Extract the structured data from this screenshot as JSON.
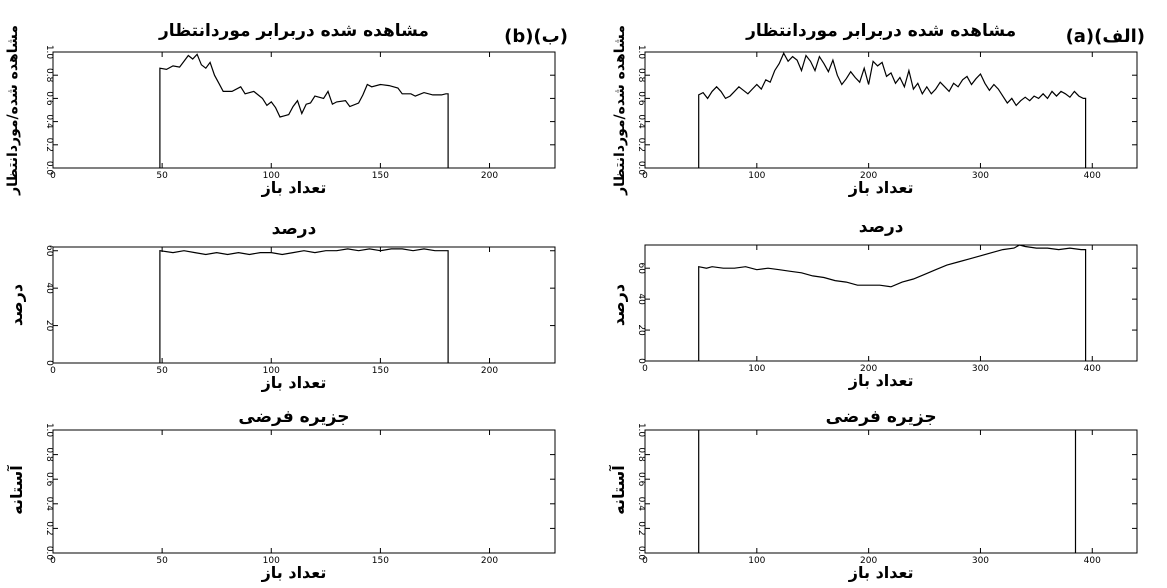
{
  "chart_data": [
    {
      "id": "a_top",
      "type": "line",
      "panel_label": "(a)(الف)",
      "title": "مشاهده شده دربرابر موردانتظار",
      "xlabel": "تعداد باز",
      "ylabel": "مشاهده شده/موردانتظار",
      "xlim": [
        0,
        440
      ],
      "ylim": [
        0,
        1.0
      ],
      "xticks": [
        "0",
        "100",
        "200",
        "300",
        "400"
      ],
      "yticks": [
        "0.0",
        "0.2",
        "0.4",
        "0.6",
        "0.8",
        "1.0"
      ],
      "points": [
        [
          48,
          0
        ],
        [
          48,
          0.63
        ],
        [
          52,
          0.65
        ],
        [
          56,
          0.6
        ],
        [
          60,
          0.66
        ],
        [
          64,
          0.7
        ],
        [
          68,
          0.66
        ],
        [
          72,
          0.6
        ],
        [
          76,
          0.62
        ],
        [
          80,
          0.66
        ],
        [
          84,
          0.7
        ],
        [
          88,
          0.67
        ],
        [
          92,
          0.64
        ],
        [
          96,
          0.68
        ],
        [
          100,
          0.72
        ],
        [
          104,
          0.68
        ],
        [
          108,
          0.76
        ],
        [
          112,
          0.74
        ],
        [
          116,
          0.84
        ],
        [
          120,
          0.9
        ],
        [
          124,
          0.99
        ],
        [
          128,
          0.92
        ],
        [
          132,
          0.96
        ],
        [
          136,
          0.93
        ],
        [
          140,
          0.84
        ],
        [
          144,
          0.97
        ],
        [
          148,
          0.92
        ],
        [
          152,
          0.84
        ],
        [
          156,
          0.96
        ],
        [
          160,
          0.9
        ],
        [
          164,
          0.83
        ],
        [
          168,
          0.93
        ],
        [
          172,
          0.8
        ],
        [
          176,
          0.72
        ],
        [
          180,
          0.77
        ],
        [
          184,
          0.83
        ],
        [
          188,
          0.78
        ],
        [
          192,
          0.74
        ],
        [
          196,
          0.86
        ],
        [
          200,
          0.72
        ],
        [
          204,
          0.92
        ],
        [
          208,
          0.88
        ],
        [
          212,
          0.91
        ],
        [
          216,
          0.79
        ],
        [
          220,
          0.82
        ],
        [
          224,
          0.73
        ],
        [
          228,
          0.78
        ],
        [
          232,
          0.7
        ],
        [
          236,
          0.84
        ],
        [
          240,
          0.68
        ],
        [
          244,
          0.73
        ],
        [
          248,
          0.64
        ],
        [
          252,
          0.7
        ],
        [
          256,
          0.64
        ],
        [
          260,
          0.68
        ],
        [
          264,
          0.74
        ],
        [
          268,
          0.7
        ],
        [
          272,
          0.66
        ],
        [
          276,
          0.73
        ],
        [
          280,
          0.7
        ],
        [
          284,
          0.76
        ],
        [
          288,
          0.79
        ],
        [
          292,
          0.72
        ],
        [
          296,
          0.77
        ],
        [
          300,
          0.81
        ],
        [
          304,
          0.73
        ],
        [
          308,
          0.67
        ],
        [
          312,
          0.72
        ],
        [
          316,
          0.68
        ],
        [
          320,
          0.62
        ],
        [
          324,
          0.56
        ],
        [
          328,
          0.6
        ],
        [
          332,
          0.54
        ],
        [
          336,
          0.58
        ],
        [
          340,
          0.61
        ],
        [
          344,
          0.58
        ],
        [
          348,
          0.62
        ],
        [
          352,
          0.6
        ],
        [
          356,
          0.64
        ],
        [
          360,
          0.6
        ],
        [
          364,
          0.66
        ],
        [
          368,
          0.62
        ],
        [
          372,
          0.66
        ],
        [
          376,
          0.64
        ],
        [
          380,
          0.61
        ],
        [
          384,
          0.66
        ],
        [
          388,
          0.62
        ],
        [
          392,
          0.6
        ],
        [
          394,
          0.6
        ],
        [
          394,
          0
        ]
      ]
    },
    {
      "id": "a_mid",
      "type": "line",
      "title": "درصد",
      "xlabel": "تعداد باز",
      "ylabel": "درصد",
      "xlim": [
        0,
        440
      ],
      "ylim": [
        0,
        75
      ],
      "xticks": [
        "0",
        "100",
        "200",
        "300",
        "400"
      ],
      "yticks": [
        "0",
        "20",
        "40",
        "60"
      ],
      "points": [
        [
          48,
          0
        ],
        [
          48,
          61
        ],
        [
          55,
          60
        ],
        [
          60,
          61
        ],
        [
          70,
          60
        ],
        [
          80,
          60
        ],
        [
          90,
          61
        ],
        [
          100,
          59
        ],
        [
          110,
          60
        ],
        [
          120,
          59
        ],
        [
          130,
          58
        ],
        [
          140,
          57
        ],
        [
          150,
          55
        ],
        [
          160,
          54
        ],
        [
          170,
          52
        ],
        [
          180,
          51
        ],
        [
          190,
          49
        ],
        [
          200,
          49
        ],
        [
          210,
          49
        ],
        [
          220,
          48
        ],
        [
          230,
          51
        ],
        [
          240,
          53
        ],
        [
          250,
          56
        ],
        [
          260,
          59
        ],
        [
          270,
          62
        ],
        [
          280,
          64
        ],
        [
          290,
          66
        ],
        [
          300,
          68
        ],
        [
          310,
          70
        ],
        [
          320,
          72
        ],
        [
          330,
          73
        ],
        [
          335,
          75
        ],
        [
          340,
          74
        ],
        [
          350,
          73
        ],
        [
          360,
          73
        ],
        [
          370,
          72
        ],
        [
          380,
          73
        ],
        [
          390,
          72
        ],
        [
          394,
          72
        ],
        [
          394,
          0
        ]
      ]
    },
    {
      "id": "a_bot",
      "type": "line",
      "title": "جزیره فرضی",
      "xlabel": "تعداد باز",
      "ylabel": "آستانه",
      "xlim": [
        0,
        440
      ],
      "ylim": [
        0,
        1.0
      ],
      "xticks": [
        "0",
        "100",
        "200",
        "300",
        "400"
      ],
      "yticks": [
        "0.0",
        "0.2",
        "0.4",
        "0.6",
        "0.8",
        "1.0"
      ],
      "points": [
        [
          48,
          0
        ],
        [
          48,
          1.0
        ]
      ],
      "points2": [
        [
          385,
          0
        ],
        [
          385,
          1.0
        ]
      ]
    },
    {
      "id": "b_top",
      "type": "line",
      "panel_label": "(b)(ب)",
      "title": "مشاهده شده دربرابر موردانتظار",
      "xlabel": "تعداد باز",
      "ylabel": "مشاهده شده/موردانتظار",
      "xlim": [
        0,
        230
      ],
      "ylim": [
        0,
        1.0
      ],
      "xticks": [
        "0",
        "50",
        "100",
        "150",
        "200"
      ],
      "yticks": [
        "0.0",
        "0.2",
        "0.4",
        "0.6",
        "0.8",
        "1.0"
      ],
      "points": [
        [
          49,
          0
        ],
        [
          49,
          0.86
        ],
        [
          52,
          0.85
        ],
        [
          55,
          0.88
        ],
        [
          58,
          0.87
        ],
        [
          60,
          0.92
        ],
        [
          62,
          0.97
        ],
        [
          64,
          0.94
        ],
        [
          66,
          0.98
        ],
        [
          68,
          0.89
        ],
        [
          70,
          0.86
        ],
        [
          72,
          0.91
        ],
        [
          74,
          0.8
        ],
        [
          76,
          0.73
        ],
        [
          78,
          0.66
        ],
        [
          82,
          0.66
        ],
        [
          86,
          0.7
        ],
        [
          88,
          0.64
        ],
        [
          92,
          0.66
        ],
        [
          96,
          0.6
        ],
        [
          98,
          0.54
        ],
        [
          100,
          0.57
        ],
        [
          102,
          0.52
        ],
        [
          104,
          0.44
        ],
        [
          106,
          0.45
        ],
        [
          108,
          0.46
        ],
        [
          110,
          0.53
        ],
        [
          112,
          0.58
        ],
        [
          114,
          0.47
        ],
        [
          116,
          0.55
        ],
        [
          118,
          0.56
        ],
        [
          120,
          0.62
        ],
        [
          124,
          0.6
        ],
        [
          126,
          0.66
        ],
        [
          128,
          0.55
        ],
        [
          130,
          0.57
        ],
        [
          134,
          0.58
        ],
        [
          136,
          0.53
        ],
        [
          140,
          0.56
        ],
        [
          142,
          0.63
        ],
        [
          144,
          0.72
        ],
        [
          146,
          0.7
        ],
        [
          150,
          0.72
        ],
        [
          154,
          0.71
        ],
        [
          158,
          0.69
        ],
        [
          160,
          0.64
        ],
        [
          164,
          0.64
        ],
        [
          166,
          0.62
        ],
        [
          170,
          0.65
        ],
        [
          174,
          0.63
        ],
        [
          178,
          0.63
        ],
        [
          180,
          0.64
        ],
        [
          181,
          0.64
        ],
        [
          181,
          0
        ]
      ]
    },
    {
      "id": "b_mid",
      "type": "line",
      "title": "درصد",
      "xlabel": "تعداد باز",
      "ylabel": "درصد",
      "xlim": [
        0,
        230
      ],
      "ylim": [
        0,
        62
      ],
      "xticks": [
        "0",
        "50",
        "100",
        "150",
        "200"
      ],
      "yticks": [
        "0",
        "20",
        "40",
        "60"
      ],
      "points": [
        [
          49,
          0
        ],
        [
          49,
          60
        ],
        [
          55,
          59
        ],
        [
          60,
          60
        ],
        [
          65,
          59
        ],
        [
          70,
          58
        ],
        [
          75,
          59
        ],
        [
          80,
          58
        ],
        [
          85,
          59
        ],
        [
          90,
          58
        ],
        [
          95,
          59
        ],
        [
          100,
          59
        ],
        [
          105,
          58
        ],
        [
          110,
          59
        ],
        [
          115,
          60
        ],
        [
          120,
          59
        ],
        [
          125,
          60
        ],
        [
          130,
          60
        ],
        [
          135,
          61
        ],
        [
          140,
          60
        ],
        [
          145,
          61
        ],
        [
          150,
          60
        ],
        [
          155,
          61
        ],
        [
          160,
          61
        ],
        [
          165,
          60
        ],
        [
          170,
          61
        ],
        [
          175,
          60
        ],
        [
          180,
          60
        ],
        [
          181,
          60
        ],
        [
          181,
          0
        ]
      ]
    },
    {
      "id": "b_bot",
      "type": "line",
      "title": "جزیره فرضی",
      "xlabel": "تعداد باز",
      "ylabel": "آستانه",
      "xlim": [
        0,
        230
      ],
      "ylim": [
        0,
        1.0
      ],
      "xticks": [
        "0",
        "50",
        "100",
        "150",
        "200"
      ],
      "yticks": [
        "0.0",
        "0.2",
        "0.4",
        "0.6",
        "0.8",
        "1.0"
      ],
      "points": []
    }
  ]
}
